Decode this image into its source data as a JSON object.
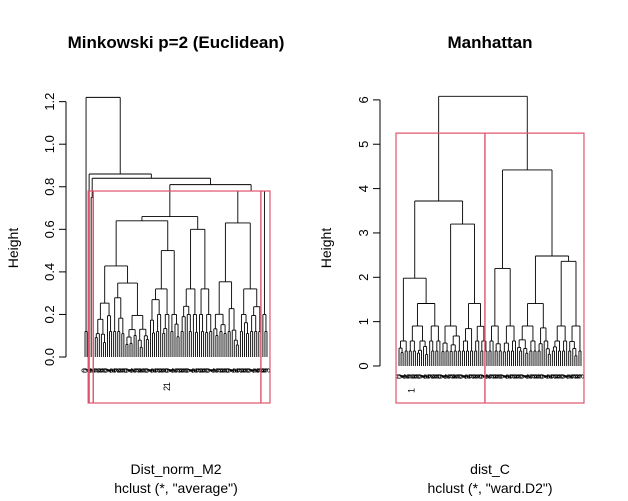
{
  "chart_data": [
    {
      "type": "dendrogram",
      "title": "Minkowski p=2 (Euclidean)",
      "ylabel": "Height",
      "xlabel": "Dist_norm_M2",
      "sublabel": "hclust (*, \"average\")",
      "yticks": [
        0.0,
        0.2,
        0.4,
        0.6,
        0.8,
        1.0,
        1.2
      ],
      "ytick_labels": [
        "0.0",
        "0.2",
        "0.4",
        "0.6",
        "0.8",
        "1.0",
        "1.2"
      ],
      "ylim": [
        0,
        1.25
      ],
      "leaf_count": 90,
      "visible_leaf_labels": [
        "1",
        "2"
      ],
      "merges": [
        {
          "left": [
            0,
            1
          ],
          "right": [
            2,
            89
          ],
          "height": 1.22
        },
        {
          "left": [
            2,
            2
          ],
          "right": [
            3,
            89
          ],
          "height": 0.86
        },
        {
          "left": [
            3,
            4
          ],
          "right": [
            5,
            89
          ],
          "height": 0.84
        },
        {
          "left": [
            3,
            3
          ],
          "right": [
            4,
            4
          ],
          "height": 0.75
        },
        {
          "left": [
            5,
            62
          ],
          "right": [
            63,
            89
          ],
          "height": 0.81
        },
        {
          "left": [
            63,
            86
          ],
          "right": [
            87,
            89
          ],
          "height": 0.78
        },
        {
          "left": [
            5,
            46
          ],
          "right": [
            47,
            62
          ],
          "height": 0.66
        },
        {
          "left": [
            5,
            31
          ],
          "right": [
            32,
            46
          ],
          "height": 0.64
        },
        {
          "left": [
            47,
            55
          ],
          "right": [
            56,
            62
          ],
          "height": 0.6
        },
        {
          "left": [
            63,
            75
          ],
          "right": [
            76,
            86
          ],
          "height": 0.63
        }
      ],
      "highlight_rect": {
        "x_from_leaf": 3,
        "x_to_leaf": 89,
        "height": 0.78,
        "color": "#DF536B"
      },
      "cut_lines_at_leaves": [
        3,
        5,
        87
      ]
    },
    {
      "type": "dendrogram",
      "title": "Manhattan",
      "ylabel": "Height",
      "xlabel": "dist_C",
      "sublabel": "hclust (*, \"ward.D2\")",
      "yticks": [
        0,
        1,
        2,
        3,
        4,
        5,
        6
      ],
      "ytick_labels": [
        "0",
        "1",
        "2",
        "3",
        "4",
        "5",
        "6"
      ],
      "ylim": [
        0,
        6.2
      ],
      "leaf_count": 90,
      "visible_leaf_labels": [
        "1"
      ],
      "merges": [
        {
          "left": [
            0,
            43
          ],
          "right": [
            44,
            89
          ],
          "height": 6.08
        },
        {
          "left": [
            0,
            20
          ],
          "right": [
            21,
            43
          ],
          "height": 3.72
        },
        {
          "left": [
            44,
            57
          ],
          "right": [
            58,
            89
          ],
          "height": 4.42
        },
        {
          "left": [
            21,
            30
          ],
          "right": [
            31,
            43
          ],
          "height": 3.2
        },
        {
          "left": [
            58,
            74
          ],
          "right": [
            75,
            89
          ],
          "height": 2.48
        },
        {
          "left": [
            44,
            50
          ],
          "right": [
            51,
            57
          ],
          "height": 2.2
        },
        {
          "left": [
            0,
            4
          ],
          "right": [
            5,
            20
          ],
          "height": 1.98
        },
        {
          "left": [
            75,
            82
          ],
          "right": [
            83,
            89
          ],
          "height": 2.36
        }
      ],
      "highlight_rect": {
        "x_from_leaf": 0,
        "x_to_leaf": 89,
        "height": 5.25,
        "color": "#DF536B"
      },
      "cut_lines_at_leaves": [
        43
      ]
    }
  ]
}
